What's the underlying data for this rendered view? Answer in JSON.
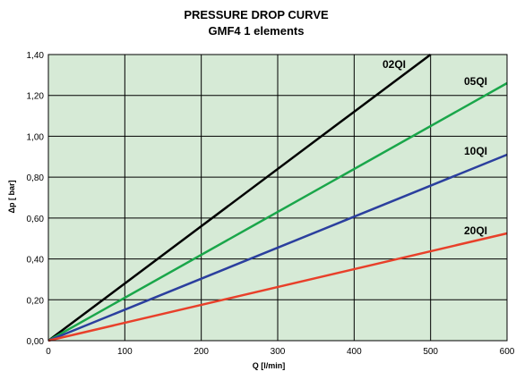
{
  "chart_data": {
    "type": "line",
    "title": "PRESSURE DROP CURVE",
    "subtitle": "GMF4 1 elements",
    "xlabel": "Q  [l/min]",
    "ylabel": "Δp [  bar]",
    "xlim": [
      0,
      600
    ],
    "ylim": [
      0,
      1.4
    ],
    "x_ticks": [
      0,
      100,
      200,
      300,
      400,
      500,
      600
    ],
    "y_ticks": [
      0.0,
      0.2,
      0.4,
      0.6,
      0.8,
      1.0,
      1.2,
      1.4
    ],
    "x_tick_labels": [
      "0",
      "100",
      "200",
      "300",
      "400",
      "500",
      "600"
    ],
    "y_tick_labels": [
      "0,00",
      "0,20",
      "0,40",
      "0,60",
      "0,80",
      "1,00",
      "1,20",
      "1,40"
    ],
    "grid": true,
    "background_color": "#d6ead6",
    "series": [
      {
        "name": "02QI",
        "color": "#000000",
        "x": [
          0,
          500
        ],
        "y": [
          0,
          1.4
        ]
      },
      {
        "name": "05QI",
        "color": "#1aa64a",
        "x": [
          0,
          600
        ],
        "y": [
          0,
          1.26
        ]
      },
      {
        "name": "10QI",
        "color": "#2b3f9e",
        "x": [
          0,
          600
        ],
        "y": [
          0,
          0.91
        ]
      },
      {
        "name": "20QI",
        "color": "#e8402a",
        "x": [
          0,
          600
        ],
        "y": [
          0,
          0.525
        ]
      }
    ]
  }
}
